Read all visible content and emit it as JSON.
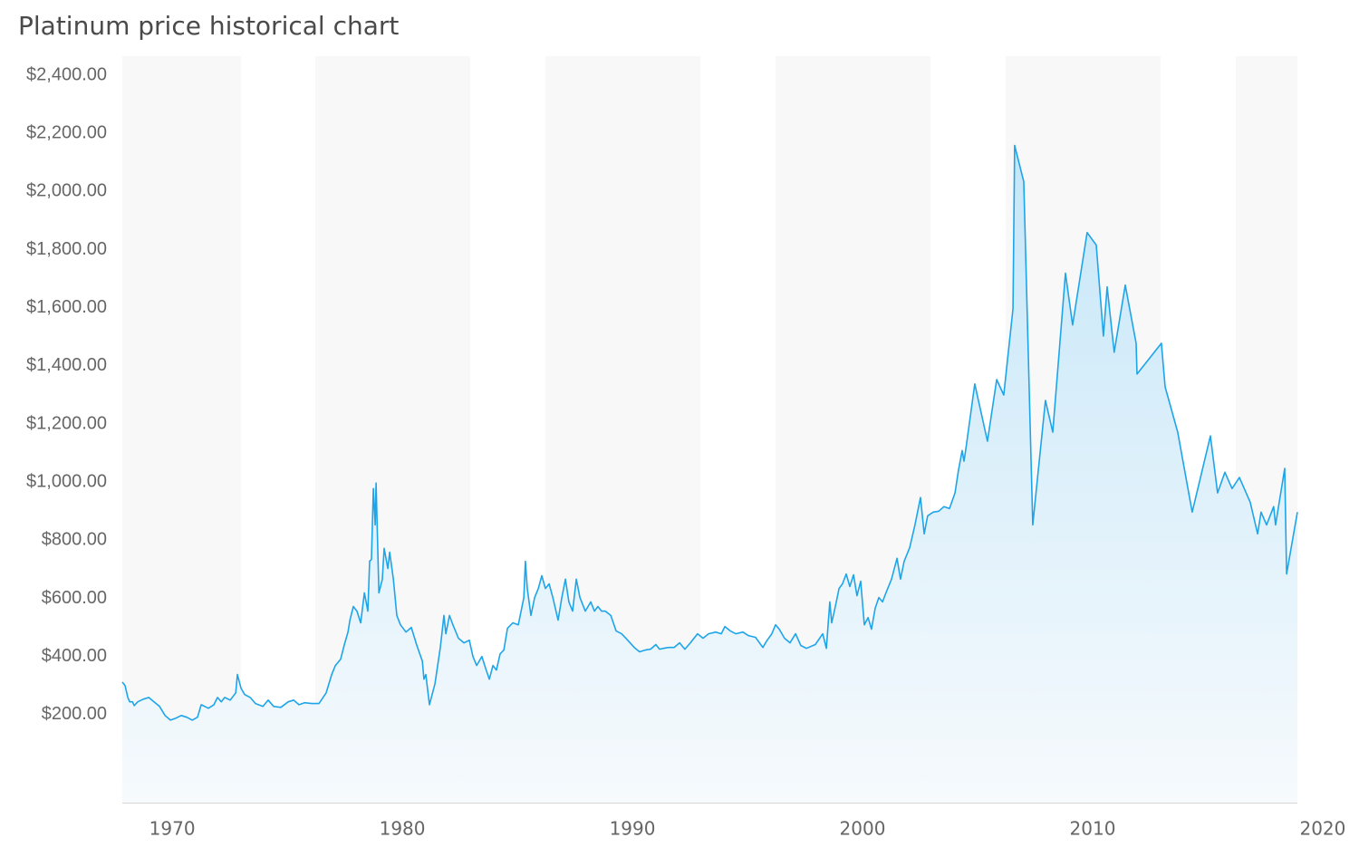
{
  "chart_data": {
    "type": "area",
    "title": "Platinum price historical chart",
    "color": "#1ea5e9",
    "x": [
      1967.83,
      1967.95,
      1968.07,
      1968.15,
      1968.27,
      1968.35,
      1968.5,
      1968.74,
      1968.98,
      1969.21,
      1969.45,
      1969.69,
      1969.92,
      1970.16,
      1970.39,
      1970.63,
      1970.87,
      1971.1,
      1971.26,
      1971.57,
      1971.81,
      1971.97,
      1972.13,
      1972.28,
      1972.52,
      1972.76,
      1972.83,
      1972.99,
      1973.15,
      1973.39,
      1973.62,
      1973.94,
      1974.17,
      1974.41,
      1974.72,
      1975.04,
      1975.28,
      1975.51,
      1975.75,
      1976.06,
      1976.38,
      1976.69,
      1976.93,
      1977.09,
      1977.32,
      1977.48,
      1977.64,
      1977.72,
      1977.87,
      1978.03,
      1978.19,
      1978.35,
      1978.5,
      1978.58,
      1978.66,
      1978.74,
      1978.82,
      1978.86,
      1978.98,
      1979.13,
      1979.21,
      1979.37,
      1979.45,
      1979.61,
      1979.76,
      1979.92,
      1980.16,
      1980.39,
      1980.63,
      1980.87,
      1980.94,
      1981.02,
      1981.18,
      1981.42,
      1981.65,
      1981.81,
      1981.89,
      1982.05,
      1982.2,
      1982.44,
      1982.68,
      1982.91,
      1983.07,
      1983.23,
      1983.46,
      1983.62,
      1983.78,
      1983.94,
      1984.09,
      1984.25,
      1984.41,
      1984.57,
      1984.8,
      1985.04,
      1985.28,
      1985.35,
      1985.43,
      1985.59,
      1985.75,
      1985.91,
      1986.06,
      1986.22,
      1986.38,
      1986.54,
      1986.77,
      1986.93,
      1987.09,
      1987.24,
      1987.4,
      1987.56,
      1987.72,
      1987.95,
      1988.19,
      1988.35,
      1988.5,
      1988.66,
      1988.82,
      1989.06,
      1989.29,
      1989.53,
      1989.76,
      1990.08,
      1990.31,
      1990.55,
      1990.79,
      1991.02,
      1991.18,
      1991.34,
      1991.57,
      1991.81,
      1992.05,
      1992.28,
      1992.52,
      1992.83,
      1993.07,
      1993.31,
      1993.62,
      1993.86,
      1994.02,
      1994.25,
      1994.49,
      1994.8,
      1995.04,
      1995.35,
      1995.67,
      1995.83,
      1996.06,
      1996.22,
      1996.38,
      1996.61,
      1996.85,
      1997.09,
      1997.32,
      1997.56,
      1997.95,
      1998.27,
      1998.43,
      1998.58,
      1998.66,
      1998.82,
      1998.98,
      1999.13,
      1999.29,
      1999.45,
      1999.61,
      1999.76,
      1999.92,
      2000.08,
      2000.24,
      2000.39,
      2000.55,
      2000.71,
      2000.87,
      2001.02,
      2001.26,
      2001.5,
      2001.65,
      2001.81,
      2002.05,
      2002.28,
      2002.52,
      2002.68,
      2002.83,
      2003.07,
      2003.31,
      2003.54,
      2003.78,
      2004.02,
      2004.17,
      2004.33,
      2004.41,
      2004.49,
      2004.88,
      2005.43,
      2005.83,
      2006.14,
      2006.54,
      2006.61,
      2007.01,
      2007.4,
      2007.95,
      2008.27,
      2008.82,
      2009.13,
      2009.76,
      2010.16,
      2010.47,
      2010.63,
      2010.94,
      2011.42,
      2011.89,
      2011.93,
      2012.99,
      2013.15,
      2013.7,
      2014.33,
      2015.12,
      2015.43,
      2015.75,
      2016.06,
      2016.38,
      2016.85,
      2017.17,
      2017.32,
      2017.56,
      2017.87,
      2017.95,
      2018.35,
      2018.43,
      2018.9
    ],
    "values": [
      312,
      300,
      259,
      244,
      244,
      231,
      244,
      253,
      259,
      244,
      228,
      197,
      181,
      188,
      197,
      191,
      181,
      191,
      234,
      222,
      234,
      259,
      244,
      259,
      250,
      275,
      338,
      291,
      269,
      259,
      238,
      228,
      250,
      228,
      225,
      244,
      250,
      234,
      241,
      238,
      238,
      275,
      338,
      369,
      391,
      441,
      484,
      525,
      572,
      556,
      516,
      619,
      556,
      728,
      734,
      978,
      853,
      997,
      619,
      666,
      772,
      703,
      759,
      666,
      541,
      509,
      484,
      500,
      438,
      384,
      322,
      338,
      234,
      306,
      431,
      541,
      478,
      541,
      509,
      463,
      447,
      456,
      400,
      369,
      400,
      359,
      322,
      369,
      353,
      409,
      422,
      497,
      516,
      509,
      603,
      728,
      634,
      541,
      603,
      634,
      678,
      634,
      650,
      603,
      525,
      603,
      666,
      588,
      556,
      666,
      603,
      556,
      588,
      556,
      572,
      556,
      556,
      541,
      488,
      478,
      459,
      431,
      416,
      422,
      425,
      441,
      425,
      428,
      431,
      431,
      447,
      425,
      447,
      478,
      463,
      478,
      484,
      478,
      503,
      488,
      478,
      484,
      472,
      466,
      431,
      453,
      478,
      509,
      494,
      463,
      447,
      478,
      438,
      428,
      441,
      478,
      428,
      588,
      516,
      572,
      634,
      650,
      684,
      641,
      681,
      609,
      659,
      509,
      534,
      494,
      566,
      603,
      588,
      619,
      666,
      738,
      666,
      728,
      775,
      853,
      947,
      822,
      884,
      897,
      900,
      916,
      909,
      963,
      1041,
      1109,
      1072,
      1113,
      1338,
      1141,
      1353,
      1300,
      1597,
      2159,
      2034,
      853,
      1281,
      1172,
      1719,
      1541,
      1859,
      1816,
      1503,
      1672,
      1447,
      1678,
      1478,
      1372,
      1478,
      1328,
      1172,
      897,
      1159,
      963,
      1034,
      978,
      1016,
      931,
      822,
      897,
      853,
      916,
      853,
      1047,
      684,
      897
    ],
    "xlim": [
      1967.83,
      2018.9
    ],
    "xticks": [
      1970,
      1980,
      1990,
      2000,
      2010,
      2020
    ],
    "ylim": [
      -103,
      2466
    ],
    "yticks": [
      {
        "value": 200,
        "label": "$200.00"
      },
      {
        "value": 400,
        "label": "$400.00"
      },
      {
        "value": 600,
        "label": "$600.00"
      },
      {
        "value": 800,
        "label": "$800.00"
      },
      {
        "value": 1000,
        "label": "$1,000.00"
      },
      {
        "value": 1200,
        "label": "$1,200.00"
      },
      {
        "value": 1400,
        "label": "$1,400.00"
      },
      {
        "value": 1600,
        "label": "$1,600.00"
      },
      {
        "value": 1800,
        "label": "$1,800.00"
      },
      {
        "value": 2000,
        "label": "$2,000.00"
      },
      {
        "value": 2200,
        "label": "$2,200.00"
      },
      {
        "value": 2400,
        "label": "$2,400.00"
      }
    ]
  }
}
